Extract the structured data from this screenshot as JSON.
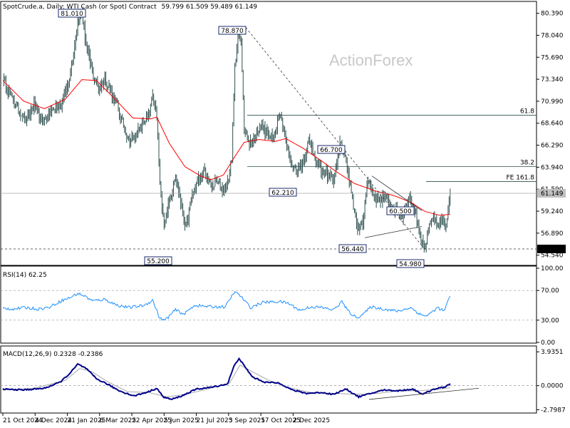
{
  "header": {
    "symbol": "SpotCrude.a, Daily:  WTI Cash (or Spot) Contract",
    "ohlc": "59.799 61.509 59.489 61.149"
  },
  "watermark": "ActionForex",
  "colors": {
    "candle": "#2f4f4f",
    "ma": "#ff0000",
    "rsi": "#1e90ff",
    "macd_main": "#00008b",
    "macd_signal": "#a9a9a9"
  },
  "chart_data": [
    {
      "type": "candlestick",
      "title": "SpotCrude.a, Daily:  WTI Cash (or Spot) Contract",
      "ylim": [
        53.6,
        81.2
      ],
      "y_ticks": [
        "80.390",
        "78.040",
        "75.690",
        "73.340",
        "70.990",
        "68.640",
        "66.290",
        "63.940",
        "61.590",
        "59.240",
        "56.890",
        "54.540"
      ],
      "last_price": "61.149",
      "support": "55.200",
      "price_labels": [
        {
          "text": "81.010",
          "value": 81.01
        },
        {
          "text": "78.870",
          "value": 78.87
        },
        {
          "text": "66.700",
          "value": 66.7
        },
        {
          "text": "62.210",
          "value": 62.21
        },
        {
          "text": "60.500",
          "value": 60.5
        },
        {
          "text": "56.440",
          "value": 56.44
        },
        {
          "text": "55.200",
          "value": 55.2
        },
        {
          "text": "54.980",
          "value": 54.98
        }
      ],
      "fib_levels": [
        {
          "label": "61.8",
          "value": 69.5
        },
        {
          "label": "38.2",
          "value": 64.0
        },
        {
          "label": "FE 161.8",
          "value": 62.4
        }
      ],
      "x_labels": [
        "21 Oct 2024",
        "4 Dec 2024",
        "21 Jan 2025",
        "6 Mar 2025",
        "22 Apr 2025",
        "5 Jun 2025",
        "21 Jul 2025",
        "3 Sep 2025",
        "17 Oct 2025",
        "2 Dec 2025"
      ],
      "close_anchors": [
        [
          0,
          73.2
        ],
        [
          8,
          71.5
        ],
        [
          15,
          70.2
        ],
        [
          22,
          69.0
        ],
        [
          30,
          70.5
        ],
        [
          38,
          68.8
        ],
        [
          44,
          69.6
        ],
        [
          50,
          70.3
        ],
        [
          56,
          70.8
        ],
        [
          62,
          72.5
        ],
        [
          68,
          76.0
        ],
        [
          72,
          79.8
        ],
        [
          76,
          80.5
        ],
        [
          80,
          77.0
        ],
        [
          86,
          74.0
        ],
        [
          92,
          72.4
        ],
        [
          98,
          73.3
        ],
        [
          104,
          72.0
        ],
        [
          110,
          70.5
        ],
        [
          116,
          68.3
        ],
        [
          122,
          66.6
        ],
        [
          128,
          67.5
        ],
        [
          134,
          68.4
        ],
        [
          140,
          69.4
        ],
        [
          144,
          71.4
        ],
        [
          148,
          69.2
        ],
        [
          151,
          62.0
        ],
        [
          155,
          58.0
        ],
        [
          160,
          60.2
        ],
        [
          166,
          63.2
        ],
        [
          172,
          59.6
        ],
        [
          176,
          57.4
        ],
        [
          182,
          61.0
        ],
        [
          188,
          62.6
        ],
        [
          194,
          63.4
        ],
        [
          200,
          61.8
        ],
        [
          206,
          62.4
        ],
        [
          212,
          61.4
        ],
        [
          216,
          62.3
        ],
        [
          220,
          65.0
        ],
        [
          223,
          74.5
        ],
        [
          226,
          78.2
        ],
        [
          229,
          77.2
        ],
        [
          232,
          68.5
        ],
        [
          236,
          66.4
        ],
        [
          242,
          67.1
        ],
        [
          248,
          68.6
        ],
        [
          254,
          67.6
        ],
        [
          260,
          66.8
        ],
        [
          266,
          69.9
        ],
        [
          270,
          68.0
        ],
        [
          276,
          64.5
        ],
        [
          282,
          63.5
        ],
        [
          288,
          64.4
        ],
        [
          294,
          66.6
        ],
        [
          300,
          65.2
        ],
        [
          306,
          63.5
        ],
        [
          312,
          63.2
        ],
        [
          318,
          62.7
        ],
        [
          324,
          66.5
        ],
        [
          330,
          64.5
        ],
        [
          336,
          60.2
        ],
        [
          342,
          57.2
        ],
        [
          346,
          58.0
        ],
        [
          350,
          62.6
        ],
        [
          354,
          61.6
        ],
        [
          360,
          60.4
        ],
        [
          366,
          60.8
        ],
        [
          372,
          60.0
        ],
        [
          378,
          59.2
        ],
        [
          384,
          58.7
        ],
        [
          390,
          60.8
        ],
        [
          396,
          59.3
        ],
        [
          402,
          56.4
        ],
        [
          406,
          55.3
        ],
        [
          410,
          58.0
        ],
        [
          414,
          58.7
        ],
        [
          418,
          57.2
        ],
        [
          422,
          58.4
        ],
        [
          426,
          57.2
        ],
        [
          430,
          61.149
        ]
      ],
      "sma_anchors": [
        [
          0,
          73.2
        ],
        [
          20,
          71.0
        ],
        [
          40,
          70.2
        ],
        [
          60,
          71.2
        ],
        [
          76,
          73.3
        ],
        [
          90,
          73.2
        ],
        [
          108,
          71.2
        ],
        [
          125,
          69.2
        ],
        [
          142,
          69.1
        ],
        [
          148,
          69.3
        ],
        [
          160,
          66.5
        ],
        [
          175,
          64.0
        ],
        [
          190,
          63.0
        ],
        [
          200,
          62.6
        ],
        [
          212,
          63.1
        ],
        [
          222,
          64.9
        ],
        [
          232,
          66.6
        ],
        [
          246,
          66.9
        ],
        [
          262,
          66.7
        ],
        [
          272,
          67.0
        ],
        [
          288,
          66.0
        ],
        [
          304,
          64.8
        ],
        [
          320,
          63.5
        ],
        [
          338,
          62.2
        ],
        [
          358,
          61.4
        ],
        [
          376,
          60.9
        ],
        [
          392,
          60.2
        ],
        [
          406,
          59.2
        ],
        [
          420,
          58.8
        ],
        [
          430,
          58.9
        ]
      ]
    },
    {
      "type": "line",
      "title": "RSI(14) 62.25",
      "ylim": [
        0,
        100
      ],
      "y_ticks": [
        "100.00",
        "70.00",
        "30.00",
        "0.00"
      ],
      "anchors": [
        [
          0,
          46
        ],
        [
          10,
          45
        ],
        [
          22,
          47
        ],
        [
          34,
          45
        ],
        [
          44,
          47
        ],
        [
          56,
          56
        ],
        [
          64,
          60
        ],
        [
          72,
          66
        ],
        [
          78,
          63
        ],
        [
          86,
          56
        ],
        [
          98,
          58
        ],
        [
          110,
          50
        ],
        [
          122,
          47
        ],
        [
          136,
          50
        ],
        [
          144,
          57
        ],
        [
          151,
          32
        ],
        [
          156,
          30
        ],
        [
          166,
          44
        ],
        [
          174,
          38
        ],
        [
          184,
          50
        ],
        [
          200,
          48
        ],
        [
          214,
          48
        ],
        [
          222,
          67
        ],
        [
          226,
          66
        ],
        [
          230,
          60
        ],
        [
          238,
          47
        ],
        [
          250,
          54
        ],
        [
          266,
          55
        ],
        [
          274,
          53
        ],
        [
          286,
          43
        ],
        [
          296,
          48
        ],
        [
          306,
          47
        ],
        [
          318,
          44
        ],
        [
          326,
          55
        ],
        [
          332,
          42
        ],
        [
          340,
          33
        ],
        [
          348,
          40
        ],
        [
          354,
          48
        ],
        [
          366,
          45
        ],
        [
          380,
          42
        ],
        [
          392,
          47
        ],
        [
          402,
          37
        ],
        [
          408,
          36
        ],
        [
          418,
          47
        ],
        [
          424,
          42
        ],
        [
          430,
          62.25
        ]
      ]
    },
    {
      "type": "line",
      "title": "MACD(12,26,9) 0.2328 -0.2386",
      "ylim": [
        -3.1,
        4.2
      ],
      "y_ticks": [
        "3.9351",
        "0.0000",
        "-2.7987"
      ],
      "main_anchors": [
        [
          0,
          -0.4
        ],
        [
          20,
          -0.5
        ],
        [
          40,
          -0.3
        ],
        [
          55,
          0.4
        ],
        [
          65,
          1.5
        ],
        [
          72,
          2.5
        ],
        [
          80,
          2.0
        ],
        [
          90,
          0.8
        ],
        [
          100,
          0.2
        ],
        [
          112,
          -0.6
        ],
        [
          126,
          -1.2
        ],
        [
          140,
          -0.7
        ],
        [
          148,
          -0.3
        ],
        [
          154,
          -1.3
        ],
        [
          162,
          -1.6
        ],
        [
          172,
          -1.2
        ],
        [
          186,
          -0.4
        ],
        [
          200,
          -0.2
        ],
        [
          216,
          0.2
        ],
        [
          222,
          2.2
        ],
        [
          227,
          3.2
        ],
        [
          232,
          2.3
        ],
        [
          240,
          1.0
        ],
        [
          252,
          0.4
        ],
        [
          266,
          0.3
        ],
        [
          278,
          -0.5
        ],
        [
          292,
          -0.9
        ],
        [
          306,
          -0.8
        ],
        [
          318,
          -1.0
        ],
        [
          330,
          -0.4
        ],
        [
          342,
          -1.3
        ],
        [
          354,
          -0.9
        ],
        [
          366,
          -0.5
        ],
        [
          380,
          -0.6
        ],
        [
          394,
          -0.4
        ],
        [
          404,
          -1.0
        ],
        [
          414,
          -0.4
        ],
        [
          424,
          -0.2
        ],
        [
          430,
          0.2328
        ]
      ],
      "signal_anchors": [
        [
          0,
          -0.5
        ],
        [
          30,
          -0.3
        ],
        [
          60,
          0.6
        ],
        [
          74,
          2.0
        ],
        [
          86,
          1.6
        ],
        [
          100,
          0.5
        ],
        [
          120,
          -0.7
        ],
        [
          140,
          -0.8
        ],
        [
          158,
          -1.3
        ],
        [
          176,
          -1.0
        ],
        [
          200,
          -0.3
        ],
        [
          218,
          0.3
        ],
        [
          228,
          2.4
        ],
        [
          240,
          1.6
        ],
        [
          256,
          0.6
        ],
        [
          274,
          -0.2
        ],
        [
          296,
          -0.8
        ],
        [
          320,
          -0.9
        ],
        [
          340,
          -1.0
        ],
        [
          360,
          -0.9
        ],
        [
          380,
          -0.6
        ],
        [
          400,
          -0.6
        ],
        [
          420,
          -0.4
        ],
        [
          430,
          -0.2386
        ]
      ]
    }
  ]
}
